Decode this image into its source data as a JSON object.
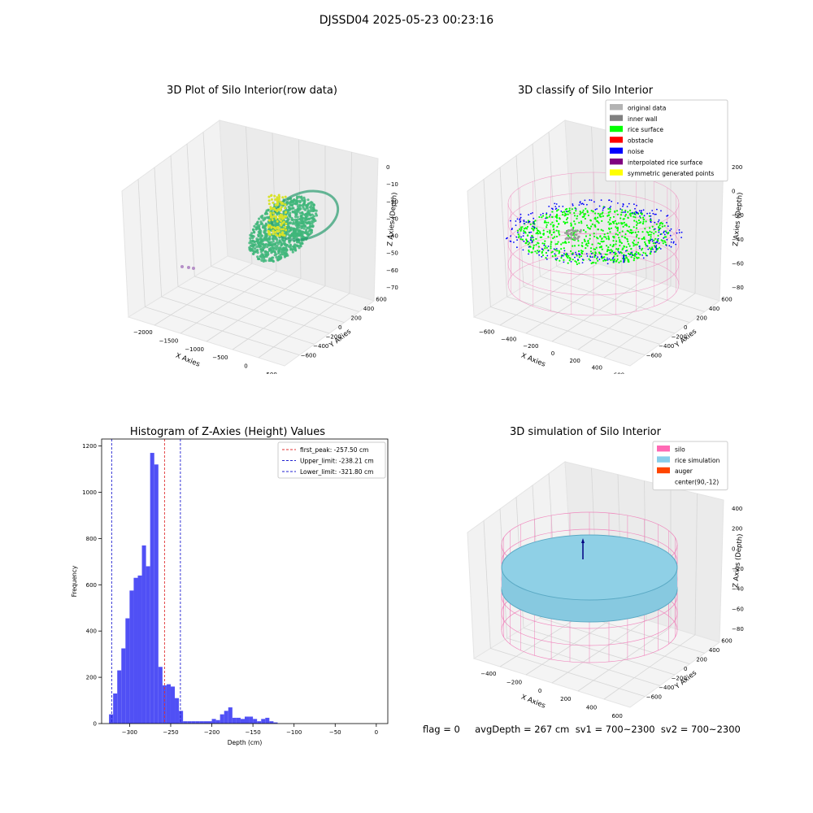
{
  "suptitle": "DJSSD04 2025-05-23 00:23:16",
  "footer": "flag = 0     avgDepth = 267 cm  sv1 = 700~2300  sv2 = 700~2300",
  "colors": {
    "raw_points": "#3fb67a",
    "raw_highlight": "#d8e22a",
    "hist_bar": "#5050f5",
    "peak_line": "#e03030",
    "limit_line": "#2020d0",
    "silo_mesh": "#f06aaf",
    "rice_sim": "#87c9e0",
    "auger": "#ff4500"
  },
  "chart_data": [
    {
      "type": "scatter",
      "projection": "3d",
      "title": "3D Plot of Silo Interior(row data)",
      "xlabel": "X Axies",
      "ylabel": "Y Axies",
      "zlabel": "Z Axies (Depth)",
      "x_ticks": [
        "−2000",
        "−1500",
        "−1000",
        "−500",
        "0",
        "500"
      ],
      "y_ticks": [
        "−600",
        "−400",
        "−200",
        "0",
        "200",
        "400",
        "600"
      ],
      "z_ticks": [
        "0",
        "−100",
        "−200",
        "−300",
        "−400",
        "−500",
        "−600",
        "−700"
      ],
      "xlim": [
        -2200,
        600
      ],
      "ylim": [
        -650,
        650
      ],
      "zlim": [
        -750,
        0
      ],
      "grid": true
    },
    {
      "type": "scatter",
      "projection": "3d",
      "title": "3D classify of Silo Interior",
      "xlabel": "X Axies",
      "ylabel": "Y Axies",
      "zlabel": "Z Axies (Depth)",
      "x_ticks": [
        "−600",
        "−400",
        "−200",
        "0",
        "200",
        "400",
        "600"
      ],
      "y_ticks": [
        "−600",
        "−400",
        "−200",
        "0",
        "200",
        "400",
        "600"
      ],
      "z_ticks": [
        "200",
        "0",
        "−200",
        "−400",
        "−600",
        "−800"
      ],
      "legend_position": "top-right",
      "legend": [
        {
          "label": "original data",
          "color": "#b3b3b3"
        },
        {
          "label": "inner wall",
          "color": "#808080"
        },
        {
          "label": "rice surface",
          "color": "#00ff00"
        },
        {
          "label": "obstacle",
          "color": "#ff0000"
        },
        {
          "label": "noise",
          "color": "#0000ff"
        },
        {
          "label": "interpolated rice surface",
          "color": "#800080"
        },
        {
          "label": "symmetric generated points",
          "color": "#ffff00"
        }
      ],
      "grid": true
    },
    {
      "type": "bar",
      "title": "Histogram of Z-Axies (Height) Values",
      "xlabel": "Depth (cm)",
      "ylabel": "Frequency",
      "xlim": [
        -334,
        14
      ],
      "ylim": [
        0,
        1230
      ],
      "x_ticks": [
        -300,
        -250,
        -200,
        -150,
        -100,
        -50,
        0
      ],
      "y_ticks": [
        0,
        200,
        400,
        600,
        800,
        1000,
        1200
      ],
      "bin_width": 5,
      "bin_start": -325,
      "values": [
        40,
        130,
        230,
        325,
        455,
        575,
        630,
        640,
        770,
        680,
        1170,
        1120,
        245,
        165,
        170,
        160,
        110,
        55,
        10,
        10,
        10,
        10,
        10,
        10,
        10,
        20,
        15,
        40,
        55,
        70,
        25,
        25,
        20,
        30,
        30,
        20,
        10,
        20,
        25,
        10,
        5,
        0,
        0,
        0,
        0,
        0,
        0,
        0,
        0,
        0,
        0,
        0,
        0,
        0,
        0,
        0,
        0,
        0,
        0,
        0,
        0,
        0,
        0,
        0,
        0
      ],
      "lines": [
        {
          "label": "first_peak: -257.50 cm",
          "x": -257.5,
          "color": "#e03030"
        },
        {
          "label": "Upper_limit: -238.21 cm",
          "x": -238.21,
          "color": "#2020d0"
        },
        {
          "label": "Lower_limit: -321.80 cm",
          "x": -321.8,
          "color": "#2020d0"
        }
      ],
      "legend_position": "top-right",
      "grid": false
    },
    {
      "type": "scatter",
      "projection": "3d",
      "title": "3D simulation of Silo Interior",
      "xlabel": "X Axies",
      "ylabel": "Y Axies",
      "zlabel": "Z Axies (Depth)",
      "x_ticks": [
        "−400",
        "−200",
        "0",
        "200",
        "400",
        "600"
      ],
      "y_ticks": [
        "−600",
        "−400",
        "−200",
        "0",
        "200",
        "400",
        "600"
      ],
      "z_ticks": [
        "400",
        "200",
        "0",
        "−200",
        "−400",
        "−600",
        "−800"
      ],
      "legend_position": "top-right",
      "legend": [
        {
          "label": "silo",
          "color": "#ff69b4"
        },
        {
          "label": "rice simulation",
          "color": "#87ceeb"
        },
        {
          "label": "auger",
          "color": "#ff4500"
        },
        {
          "label": "center(90,-12)",
          "color": ""
        }
      ],
      "grid": true
    }
  ]
}
